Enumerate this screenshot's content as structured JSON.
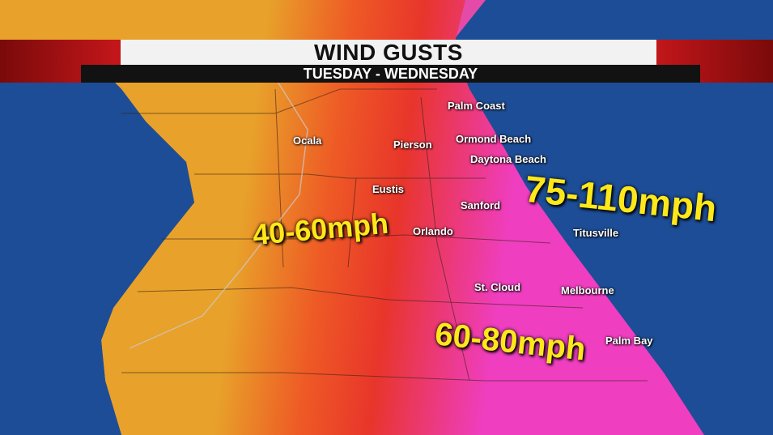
{
  "header": {
    "title": "WIND GUSTS",
    "subtitle": "TUESDAY - WEDNESDAY"
  },
  "cities": [
    "Palm Coast",
    "Ormond Beach",
    "Pierson",
    "Ocala",
    "Daytona Beach",
    "Eustis",
    "Sanford",
    "Orlando",
    "Titusville",
    "St. Cloud",
    "Melbourne",
    "Palm Bay"
  ],
  "ranges": {
    "west": "40-60mph",
    "south": "60-80mph",
    "coast": "75-110mph"
  },
  "colors": {
    "ocean": "#1d4d96",
    "zone_low": "#e8a12a",
    "zone_mid": "#ea3326",
    "zone_high": "#ee3ab0",
    "banner_red": "#c2161a",
    "label": "#ffe81a"
  }
}
